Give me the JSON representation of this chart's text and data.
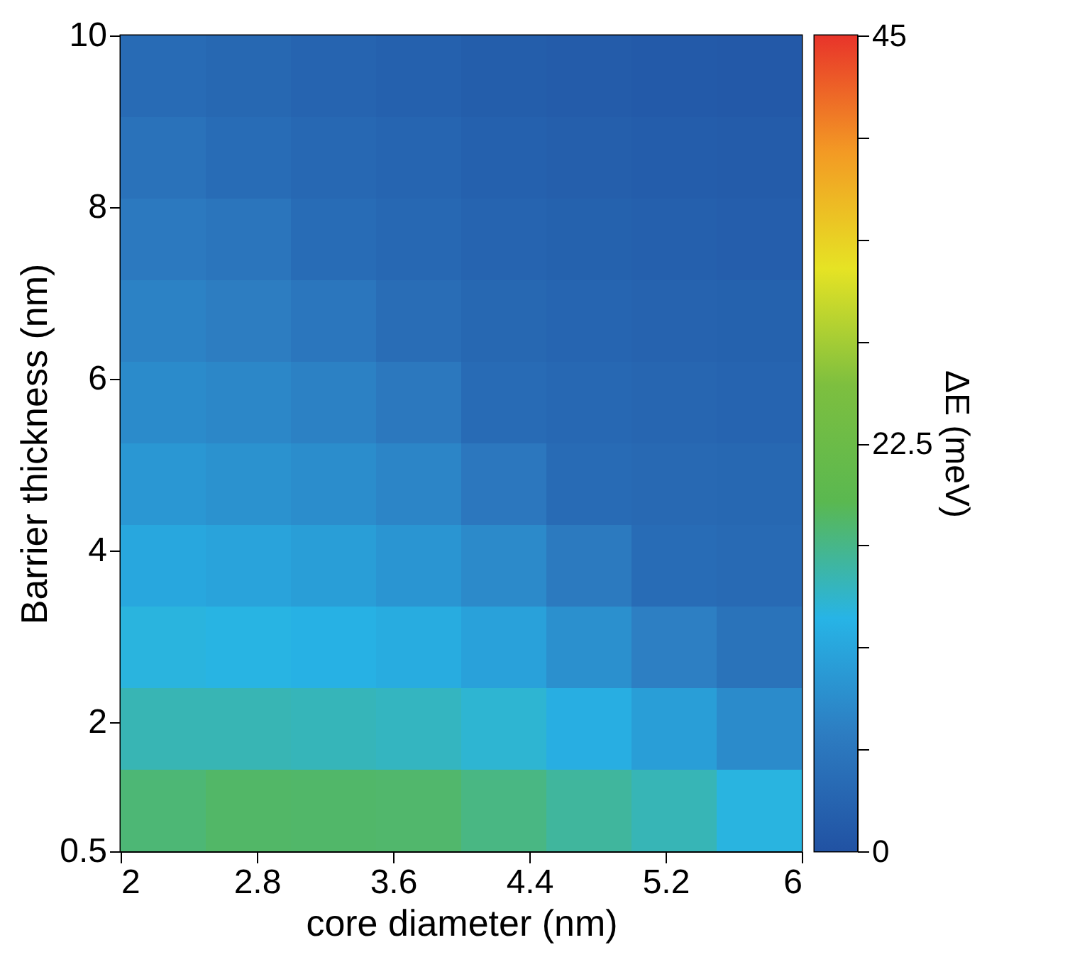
{
  "chart_data": {
    "type": "heatmap",
    "xlabel": "core diameter (nm)",
    "ylabel": "Barrier thickness (nm)",
    "clabel": "ΔE (meV)",
    "xlim": [
      2,
      6
    ],
    "xticks": [
      2,
      2.8,
      3.6,
      4.4,
      5.2,
      6
    ],
    "ylim": [
      0.5,
      10
    ],
    "yticks": [
      0.5,
      2,
      4,
      6,
      8,
      10
    ],
    "clim": [
      0,
      45
    ],
    "cticks": [
      0,
      {
        "value": 5.625,
        "label": null
      },
      {
        "value": 11.25,
        "label": null
      },
      {
        "value": 16.875,
        "label": null
      },
      22.5,
      {
        "value": 28.125,
        "label": null
      },
      {
        "value": 33.75,
        "label": null
      },
      {
        "value": 39.375,
        "label": null
      },
      45
    ],
    "colors": [
      "#2152a3",
      "#2d7cc1",
      "#27b4e6",
      "#5ab850",
      "#7dbf3f",
      "#e6e324",
      "#f39a24",
      "#e8342a"
    ],
    "cells": [
      [
        3.9,
        3.3,
        2.8,
        2.3,
        1.8,
        1.5,
        1.2,
        1.0
      ],
      [
        4.9,
        4.0,
        3.4,
        2.9,
        2.3,
        2.0,
        1.7,
        1.5
      ],
      [
        6.0,
        5.3,
        4.0,
        3.4,
        2.8,
        2.4,
        2.1,
        1.9
      ],
      [
        7.1,
        6.5,
        5.5,
        4.1,
        3.3,
        2.9,
        2.6,
        2.4
      ],
      [
        8.2,
        7.7,
        7.0,
        5.8,
        3.9,
        3.4,
        3.1,
        2.8
      ],
      [
        9.5,
        8.9,
        8.4,
        7.5,
        5.7,
        3.9,
        3.5,
        3.3
      ],
      [
        11.4,
        10.9,
        10.3,
        9.3,
        8.0,
        6.1,
        4.0,
        3.7
      ],
      [
        13.2,
        13.0,
        12.5,
        11.9,
        10.7,
        8.7,
        6.8,
        5.0
      ],
      [
        15.0,
        15.0,
        14.8,
        14.5,
        13.7,
        12.2,
        10.3,
        8.1
      ],
      [
        17.7,
        18.3,
        18.2,
        18.1,
        17.1,
        16.0,
        14.9,
        13.1
      ]
    ]
  }
}
